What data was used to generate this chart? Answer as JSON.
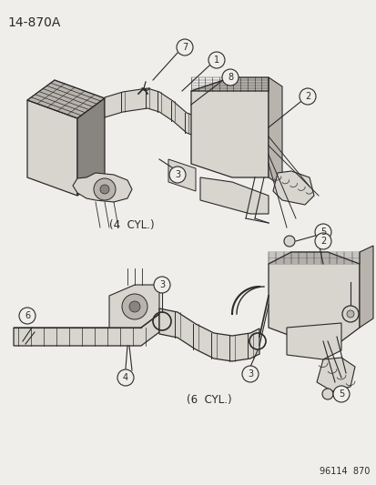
{
  "title_top_left": "14-870A",
  "label_4cyl": "(4  CYL.)",
  "label_6cyl": "(6  CYL.)",
  "bottom_right_code": "96114  870",
  "bg_color": "#f0eeeb",
  "line_color": "#2a2a2a",
  "fill_light": "#d8d4ce",
  "fill_medium": "#b8b3ac",
  "fill_dark": "#888480"
}
